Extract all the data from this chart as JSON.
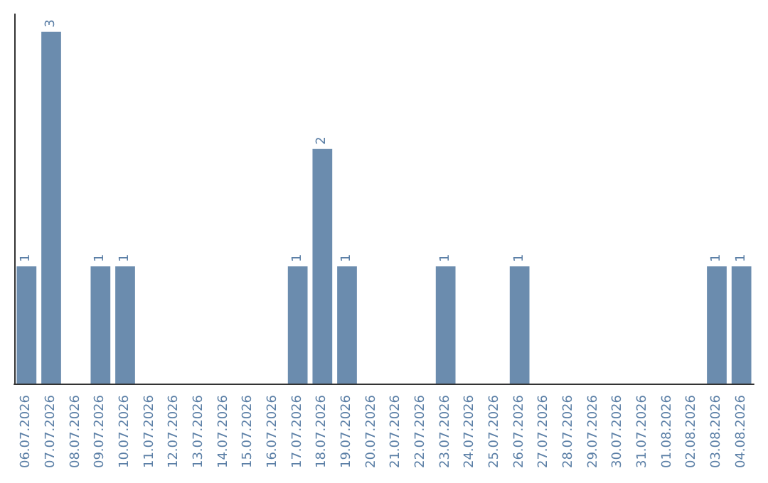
{
  "chart_data": {
    "type": "bar",
    "categories": [
      "06.07.2026",
      "07.07.2026",
      "08.07.2026",
      "09.07.2026",
      "10.07.2026",
      "11.07.2026",
      "12.07.2026",
      "13.07.2026",
      "14.07.2026",
      "15.07.2026",
      "16.07.2026",
      "17.07.2026",
      "18.07.2026",
      "19.07.2026",
      "20.07.2026",
      "21.07.2026",
      "22.07.2026",
      "23.07.2026",
      "24.07.2026",
      "25.07.2026",
      "26.07.2026",
      "27.07.2026",
      "28.07.2026",
      "29.07.2026",
      "30.07.2026",
      "31.07.2026",
      "01.08.2026",
      "02.08.2026",
      "03.08.2026",
      "04.08.2026"
    ],
    "values": [
      1,
      3,
      0,
      1,
      1,
      0,
      0,
      0,
      0,
      0,
      0,
      1,
      2,
      1,
      0,
      0,
      0,
      1,
      0,
      0,
      1,
      0,
      0,
      0,
      0,
      0,
      0,
      0,
      1,
      1
    ],
    "value_labels": [
      "1",
      "3",
      null,
      "1",
      "1",
      null,
      null,
      null,
      null,
      null,
      null,
      "1",
      "2",
      "1",
      null,
      null,
      null,
      "1",
      null,
      null,
      "1",
      null,
      null,
      null,
      null,
      null,
      null,
      null,
      "1",
      "1"
    ],
    "color": "#6b8cae"
  }
}
